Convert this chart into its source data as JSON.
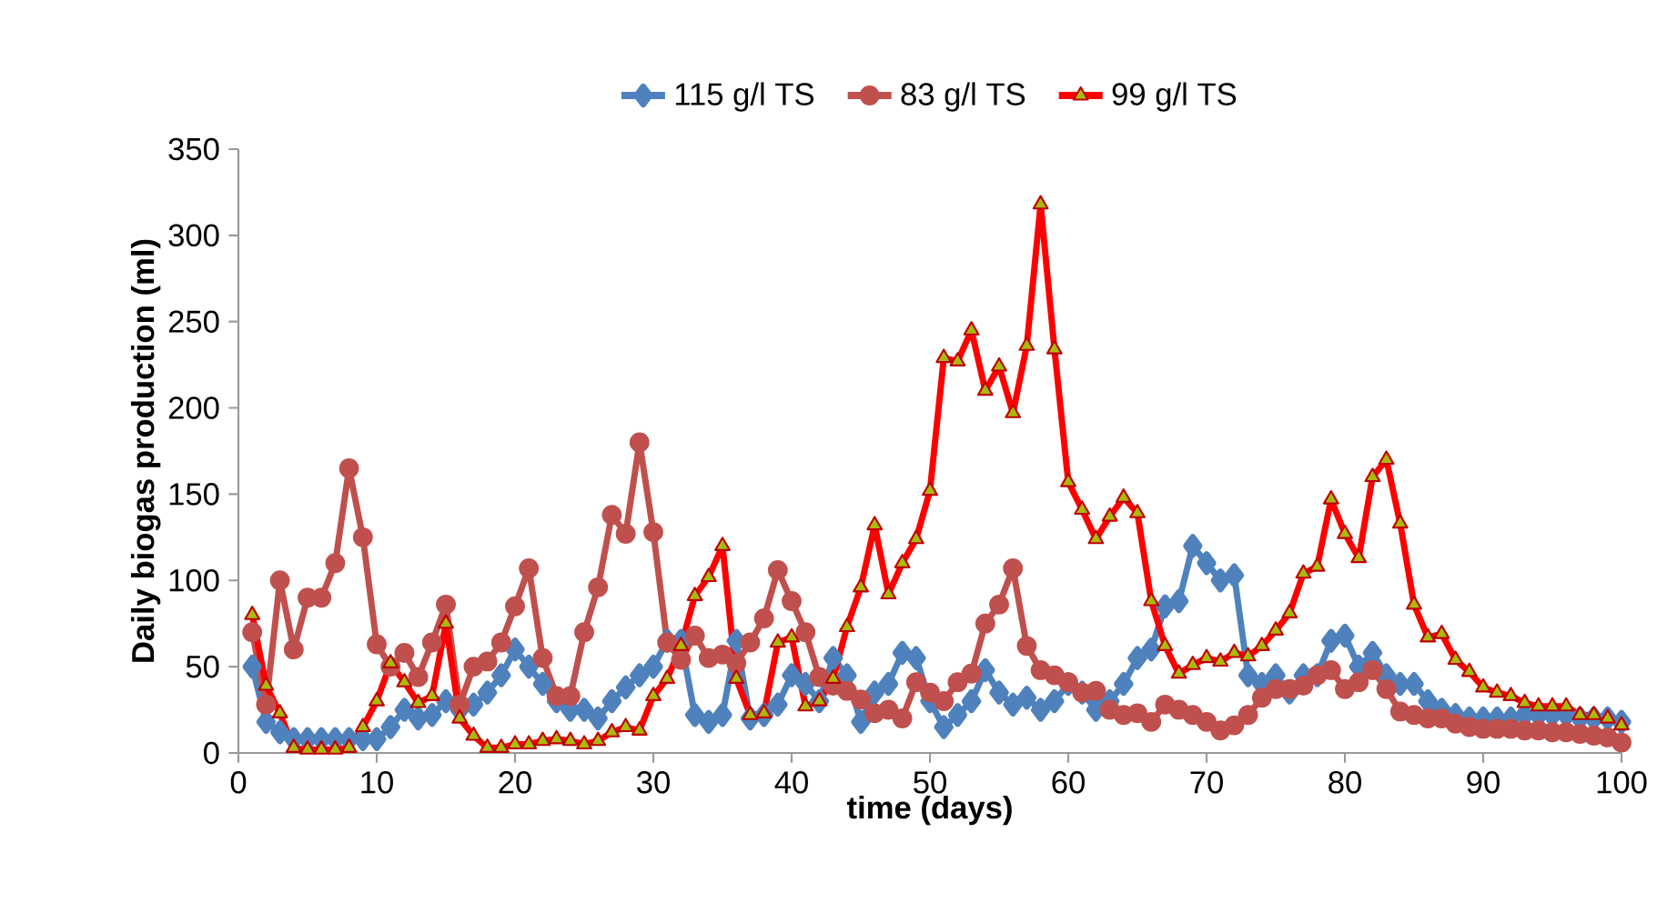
{
  "chart_data": {
    "type": "line",
    "xlabel": "time (days)",
    "ylabel": "Daily biogas production (ml)",
    "x": [
      1,
      2,
      3,
      4,
      5,
      6,
      7,
      8,
      9,
      10,
      11,
      12,
      13,
      14,
      15,
      16,
      17,
      18,
      19,
      20,
      21,
      22,
      23,
      24,
      25,
      26,
      27,
      28,
      29,
      30,
      31,
      32,
      33,
      34,
      35,
      36,
      37,
      38,
      39,
      40,
      41,
      42,
      43,
      44,
      45,
      46,
      47,
      48,
      49,
      50,
      51,
      52,
      53,
      54,
      55,
      56,
      57,
      58,
      59,
      60,
      61,
      62,
      63,
      64,
      65,
      66,
      67,
      68,
      69,
      70,
      71,
      72,
      73,
      74,
      75,
      76,
      77,
      78,
      79,
      80,
      81,
      82,
      83,
      84,
      85,
      86,
      87,
      88,
      89,
      90,
      91,
      92,
      93,
      94,
      95,
      96,
      97,
      98,
      99,
      100
    ],
    "series": [
      {
        "name": "115 g/l TS",
        "color": "#4f81bd",
        "marker": "diamond",
        "values": [
          50,
          18,
          12,
          8,
          8,
          8,
          8,
          8,
          8,
          8,
          15,
          25,
          20,
          22,
          30,
          25,
          28,
          35,
          45,
          60,
          50,
          40,
          30,
          25,
          25,
          20,
          30,
          38,
          45,
          50,
          65,
          65,
          22,
          18,
          22,
          65,
          20,
          22,
          28,
          45,
          40,
          30,
          55,
          45,
          18,
          35,
          40,
          58,
          55,
          30,
          15,
          22,
          30,
          48,
          35,
          28,
          32,
          25,
          30,
          40,
          35,
          25,
          30,
          40,
          55,
          60,
          85,
          88,
          120,
          110,
          100,
          103,
          45,
          40,
          45,
          35,
          45,
          45,
          65,
          68,
          50,
          58,
          45,
          40,
          40,
          30,
          25,
          22,
          20,
          20,
          20,
          20,
          22,
          22,
          22,
          22,
          20,
          20,
          20,
          18
        ]
      },
      {
        "name": "83 g/l TS",
        "color": "#c0504d",
        "marker": "circle",
        "values": [
          70,
          28,
          100,
          60,
          90,
          90,
          110,
          165,
          125,
          63,
          50,
          58,
          44,
          64,
          86,
          28,
          50,
          53,
          64,
          85,
          107,
          55,
          33,
          33,
          70,
          96,
          138,
          127,
          180,
          128,
          64,
          54,
          68,
          55,
          57,
          52,
          64,
          78,
          106,
          88,
          70,
          44,
          39,
          36,
          31,
          23,
          25,
          20,
          41,
          35,
          30,
          41,
          46,
          75,
          86,
          107,
          62,
          48,
          45,
          41,
          35,
          36,
          25,
          22,
          23,
          18,
          28,
          25,
          22,
          18,
          13,
          16,
          22,
          32,
          37,
          37,
          39,
          45,
          48,
          37,
          41,
          48,
          37,
          24,
          22,
          20,
          20,
          17,
          15,
          14,
          14,
          14,
          13,
          13,
          12,
          12,
          11,
          10,
          9,
          6
        ]
      },
      {
        "name": "99 g/l TS",
        "color": "#ff0000",
        "marker": "triangle",
        "values": [
          80,
          39,
          23,
          3,
          2,
          2,
          2,
          3,
          15,
          30,
          52,
          41,
          29,
          33,
          75,
          20,
          10,
          3,
          3,
          5,
          5,
          7,
          8,
          7,
          5,
          7,
          12,
          15,
          13,
          33,
          43,
          62,
          91,
          102,
          120,
          43,
          22,
          23,
          64,
          67,
          27,
          30,
          43,
          73,
          96,
          132,
          92,
          110,
          124,
          152,
          229,
          227,
          245,
          210,
          224,
          197,
          236,
          318,
          234,
          157,
          141,
          124,
          137,
          148,
          139,
          88,
          62,
          46,
          51,
          55,
          53,
          58,
          56,
          62,
          71,
          81,
          104,
          108,
          147,
          127,
          113,
          160,
          170,
          133,
          86,
          67,
          69,
          54,
          47,
          38,
          35,
          33,
          29,
          27,
          27,
          27,
          22,
          22,
          20,
          16
        ]
      }
    ],
    "xlim": [
      0,
      100
    ],
    "xticks": [
      0,
      10,
      20,
      30,
      40,
      50,
      60,
      70,
      80,
      90,
      100
    ],
    "ylim": [
      0,
      350
    ],
    "yticks": [
      0,
      50,
      100,
      150,
      200,
      250,
      300,
      350
    ],
    "legend": "top",
    "grid": false
  }
}
